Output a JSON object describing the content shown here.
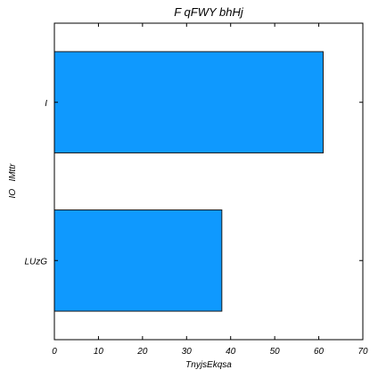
{
  "chart_data": {
    "type": "bar",
    "orientation": "horizontal",
    "title": "F qFWY bhHj",
    "xlabel": "TnyjsEkqsa",
    "ylabel": "IO   IMttr",
    "categories": [
      "I",
      "LUzG"
    ],
    "values": [
      61,
      38
    ],
    "xlim": [
      0,
      70
    ],
    "xticks": [
      "0",
      "10",
      "20",
      "30",
      "40",
      "50",
      "60",
      "70"
    ],
    "grid": false,
    "legend": "none",
    "bar_color": "#0f99fe",
    "edge_color": "#1a1a1a"
  }
}
